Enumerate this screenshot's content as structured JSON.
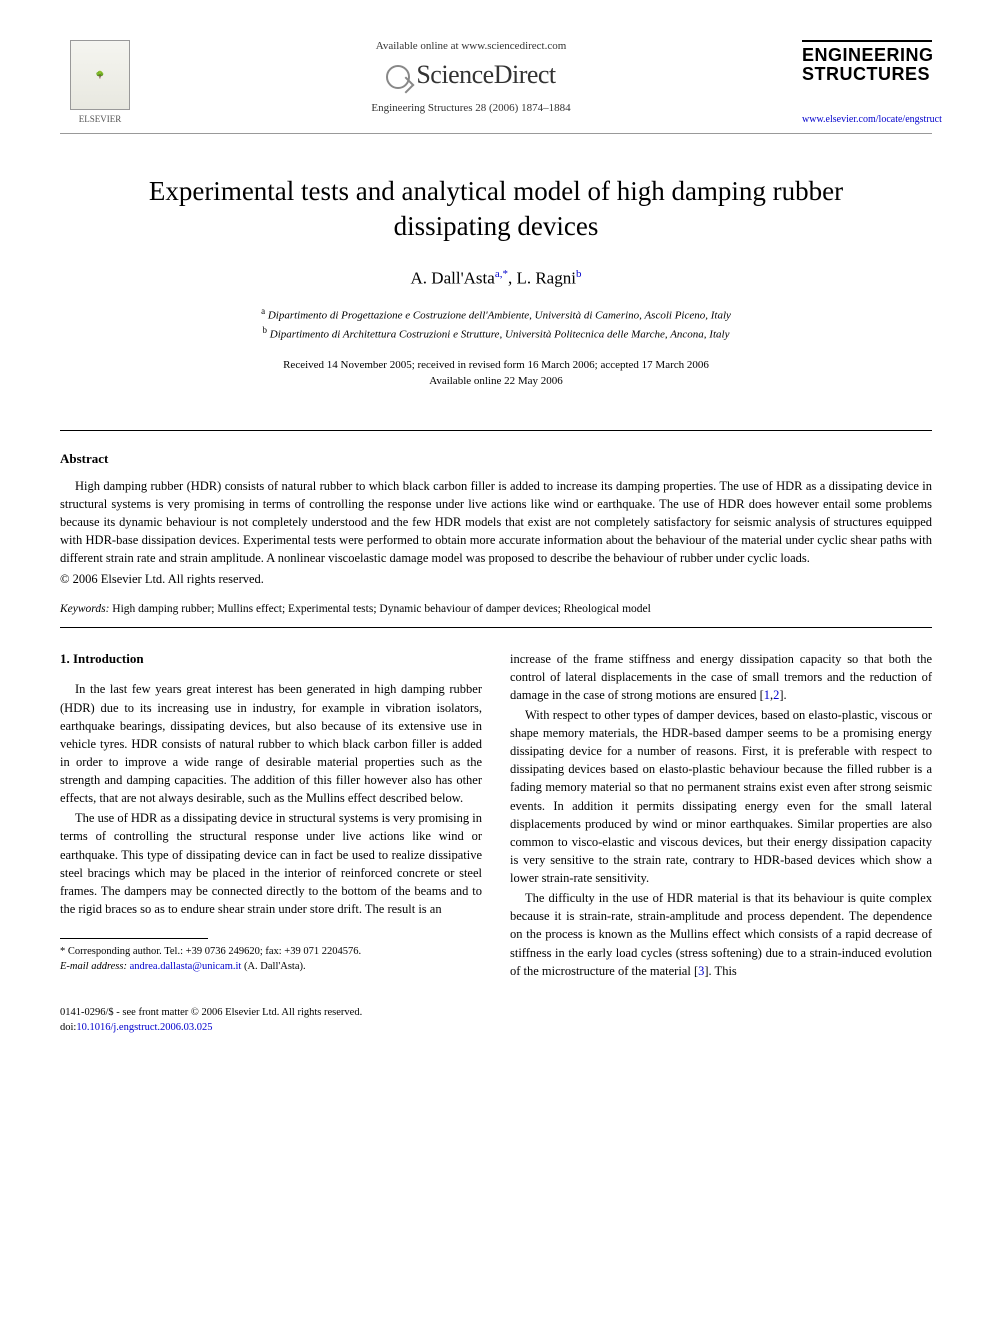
{
  "header": {
    "available_text": "Available online at www.sciencedirect.com",
    "sciencedirect": "ScienceDirect",
    "journal_ref": "Engineering Structures 28 (2006) 1874–1884",
    "elsevier_label": "ELSEVIER",
    "journal_logo_line1": "ENGINEERING",
    "journal_logo_line2": "STRUCTURES",
    "journal_url": "www.elsevier.com/locate/engstruct"
  },
  "paper": {
    "title": "Experimental tests and analytical model of high damping rubber dissipating devices",
    "author1_name": "A. Dall'Asta",
    "author1_sup": "a,",
    "author1_star": "*",
    "author2_name": ", L. Ragni",
    "author2_sup": "b",
    "affil_a_sup": "a",
    "affil_a": " Dipartimento di Progettazione e Costruzione dell'Ambiente, Università di Camerino, Ascoli Piceno, Italy",
    "affil_b_sup": "b",
    "affil_b": " Dipartimento di Architettura Costruzioni e Strutture, Università Politecnica delle Marche, Ancona, Italy",
    "dates_line1": "Received 14 November 2005; received in revised form 16 March 2006; accepted 17 March 2006",
    "dates_line2": "Available online 22 May 2006"
  },
  "abstract": {
    "heading": "Abstract",
    "text": "High damping rubber (HDR) consists of natural rubber to which black carbon filler is added to increase its damping properties. The use of HDR as a dissipating device in structural systems is very promising in terms of controlling the response under live actions like wind or earthquake. The use of HDR does however entail some problems because its dynamic behaviour is not completely understood and the few HDR models that exist are not completely satisfactory for seismic analysis of structures equipped with HDR-base dissipation devices. Experimental tests were performed to obtain more accurate information about the behaviour of the material under cyclic shear paths with different strain rate and strain amplitude. A nonlinear viscoelastic damage model was proposed to describe the behaviour of rubber under cyclic loads.",
    "copyright": "© 2006 Elsevier Ltd. All rights reserved.",
    "keywords_label": "Keywords:",
    "keywords": " High damping rubber; Mullins effect; Experimental tests; Dynamic behaviour of damper devices; Rheological model"
  },
  "body": {
    "section1_heading": "1. Introduction",
    "col1_p1": "In the last few years great interest has been generated in high damping rubber (HDR) due to its increasing use in industry, for example in vibration isolators, earthquake bearings, dissipating devices, but also because of its extensive use in vehicle tyres. HDR consists of natural rubber to which black carbon filler is added in order to improve a wide range of desirable material properties such as the strength and damping capacities. The addition of this filler however also has other effects, that are not always desirable, such as the Mullins effect described below.",
    "col1_p2": "The use of HDR as a dissipating device in structural systems is very promising in terms of controlling the structural response under live actions like wind or earthquake. This type of dissipating device can in fact be used to realize dissipative steel bracings which may be placed in the interior of reinforced concrete or steel frames. The dampers may be connected directly to the bottom of the beams and to the rigid braces so as to endure shear strain under store drift. The result is an",
    "col2_p1a": "increase of the frame stiffness and energy dissipation capacity so that both the control of lateral displacements in the case of small tremors and the reduction of damage in the case of strong motions are ensured [",
    "col2_p1_ref1": "1",
    "col2_p1_comma": ",",
    "col2_p1_ref2": "2",
    "col2_p1b": "].",
    "col2_p2": "With respect to other types of damper devices, based on elasto-plastic, viscous or shape memory materials, the HDR-based damper seems to be a promising energy dissipating device for a number of reasons. First, it is preferable with respect to dissipating devices based on elasto-plastic behaviour because the filled rubber is a fading memory material so that no permanent strains exist even after strong seismic events. In addition it permits dissipating energy even for the small lateral displacements produced by wind or minor earthquakes. Similar properties are also common to visco-elastic and viscous devices, but their energy dissipation capacity is very sensitive to the strain rate, contrary to HDR-based devices which show a lower strain-rate sensitivity.",
    "col2_p3a": "The difficulty in the use of HDR material is that its behaviour is quite complex because it is strain-rate, strain-amplitude and process dependent. The dependence on the process is known as the Mullins effect which consists of a rapid decrease of stiffness in the early load cycles (stress softening) due to a strain-induced evolution of the microstructure of the material [",
    "col2_p3_ref": "3",
    "col2_p3b": "]. This"
  },
  "footnote": {
    "corr_label": "* Corresponding author. Tel.: +39 0736 249620; fax: +39 071 2204576.",
    "email_label": "E-mail address:",
    "email": "andrea.dallasta@unicam.it",
    "email_suffix": " (A. Dall'Asta)."
  },
  "bottom": {
    "issn": "0141-0296/$ - see front matter © 2006 Elsevier Ltd. All rights reserved.",
    "doi_label": "doi:",
    "doi": "10.1016/j.engstruct.2006.03.025"
  }
}
